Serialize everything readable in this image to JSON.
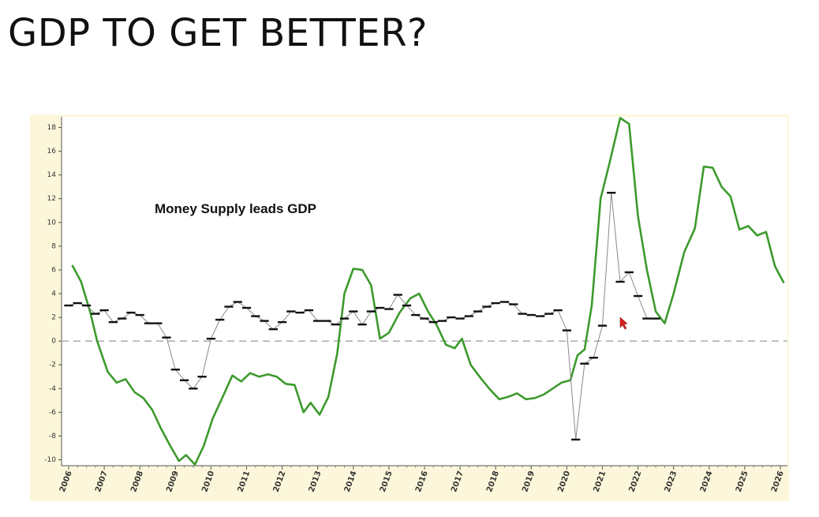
{
  "chart_data": {
    "type": "line",
    "title": "GDP TO GET BETTER?",
    "annotation": "Money Supply leads GDP",
    "xlim": [
      2005.8,
      2026.2
    ],
    "ylim": [
      -10.5,
      18.9
    ],
    "xticks": [
      2006,
      2007,
      2008,
      2009,
      2010,
      2011,
      2012,
      2013,
      2014,
      2015,
      2016,
      2017,
      2018,
      2019,
      2020,
      2021,
      2022,
      2023,
      2024,
      2025,
      2026
    ],
    "highlight_xticks": [
      2010,
      2020
    ],
    "highlight_color": "#a02c24",
    "yticks": [
      -10,
      -8,
      -6,
      -4,
      -2,
      0,
      2,
      4,
      6,
      8,
      10,
      12,
      14,
      16,
      18
    ],
    "hline": 0,
    "series": [
      {
        "color": "#3c9a2c",
        "style": "line",
        "x": [
          2006.1,
          2006.35,
          2006.6,
          2006.8,
          2007.1,
          2007.35,
          2007.6,
          2007.85,
          2008.1,
          2008.35,
          2008.6,
          2008.85,
          2009.1,
          2009.3,
          2009.55,
          2009.8,
          2010.05,
          2010.3,
          2010.6,
          2010.85,
          2011.1,
          2011.35,
          2011.6,
          2011.85,
          2012.1,
          2012.35,
          2012.6,
          2012.8,
          2013.05,
          2013.3,
          2013.55,
          2013.75,
          2014.0,
          2014.25,
          2014.5,
          2014.75,
          2015.0,
          2015.3,
          2015.6,
          2015.85,
          2016.1,
          2016.35,
          2016.6,
          2016.85,
          2017.05,
          2017.3,
          2017.6,
          2017.85,
          2018.1,
          2018.35,
          2018.6,
          2018.85,
          2019.1,
          2019.35,
          2019.6,
          2019.85,
          2020.1,
          2020.3,
          2020.5,
          2020.7,
          2020.95,
          2021.2,
          2021.5,
          2021.75,
          2022.0,
          2022.25,
          2022.5,
          2022.75,
          2023.0,
          2023.3,
          2023.6,
          2023.85,
          2024.1,
          2024.35,
          2024.6,
          2024.85,
          2025.1,
          2025.35,
          2025.6,
          2025.85,
          2026.1
        ],
        "values": [
          6.4,
          5.0,
          2.5,
          0,
          -2.6,
          -3.5,
          -3.2,
          -4.3,
          -4.8,
          -5.8,
          -7.4,
          -8.8,
          -10.1,
          -9.6,
          -10.4,
          -8.8,
          -6.5,
          -4.9,
          -2.9,
          -3.4,
          -2.7,
          -3.0,
          -2.8,
          -3.0,
          -3.6,
          -3.7,
          -6.0,
          -5.2,
          -6.2,
          -4.7,
          -1.0,
          4.0,
          6.1,
          6.0,
          4.7,
          0.2,
          0.7,
          2.4,
          3.6,
          4.0,
          2.5,
          1.3,
          -0.3,
          -0.6,
          0.2,
          -2.0,
          -3.2,
          -4.1,
          -4.9,
          -4.7,
          -4.4,
          -4.9,
          -4.8,
          -4.5,
          -4.0,
          -3.5,
          -3.3,
          -1.2,
          -0.7,
          3.0,
          12.0,
          15.0,
          18.8,
          18.3,
          10.5,
          6.0,
          2.5,
          1.5,
          4.0,
          7.5,
          9.5,
          14.7,
          14.6,
          13.0,
          12.2,
          9.4,
          9.7,
          8.9,
          9.2,
          6.3,
          4.9
        ]
      },
      {
        "color": "#111111",
        "connector_color": "#8a8a8a",
        "style": "step-dash",
        "x": [
          2006.0,
          2006.25,
          2006.5,
          2006.75,
          2007.0,
          2007.25,
          2007.5,
          2007.75,
          2008.0,
          2008.25,
          2008.5,
          2008.75,
          2009.0,
          2009.25,
          2009.5,
          2009.75,
          2010.0,
          2010.25,
          2010.5,
          2010.75,
          2011.0,
          2011.25,
          2011.5,
          2011.75,
          2012.0,
          2012.25,
          2012.5,
          2012.75,
          2013.0,
          2013.25,
          2013.5,
          2013.75,
          2014.0,
          2014.25,
          2014.5,
          2014.75,
          2015.0,
          2015.25,
          2015.5,
          2015.75,
          2016.0,
          2016.25,
          2016.5,
          2016.75,
          2017.0,
          2017.25,
          2017.5,
          2017.75,
          2018.0,
          2018.25,
          2018.5,
          2018.75,
          2019.0,
          2019.25,
          2019.5,
          2019.75,
          2020.0,
          2020.25,
          2020.5,
          2020.75,
          2021.0,
          2021.25,
          2021.5,
          2021.75,
          2022.0,
          2022.25,
          2022.5
        ],
        "values": [
          3.0,
          3.2,
          3.0,
          2.3,
          2.6,
          1.6,
          1.9,
          2.4,
          2.2,
          1.5,
          1.5,
          0.3,
          -2.4,
          -3.3,
          -4.0,
          -3.0,
          0.2,
          1.8,
          2.9,
          3.3,
          2.8,
          2.1,
          1.7,
          1.0,
          1.6,
          2.5,
          2.4,
          2.6,
          1.7,
          1.7,
          1.4,
          1.9,
          2.5,
          1.4,
          2.5,
          2.8,
          2.7,
          3.9,
          3.0,
          2.2,
          1.9,
          1.6,
          1.7,
          2.0,
          1.9,
          2.1,
          2.5,
          2.9,
          3.2,
          3.3,
          3.1,
          2.3,
          2.2,
          2.1,
          2.3,
          2.6,
          0.9,
          -8.3,
          -1.9,
          -1.4,
          1.3,
          12.5,
          5.0,
          5.8,
          3.8,
          1.9,
          1.9
        ]
      }
    ]
  }
}
